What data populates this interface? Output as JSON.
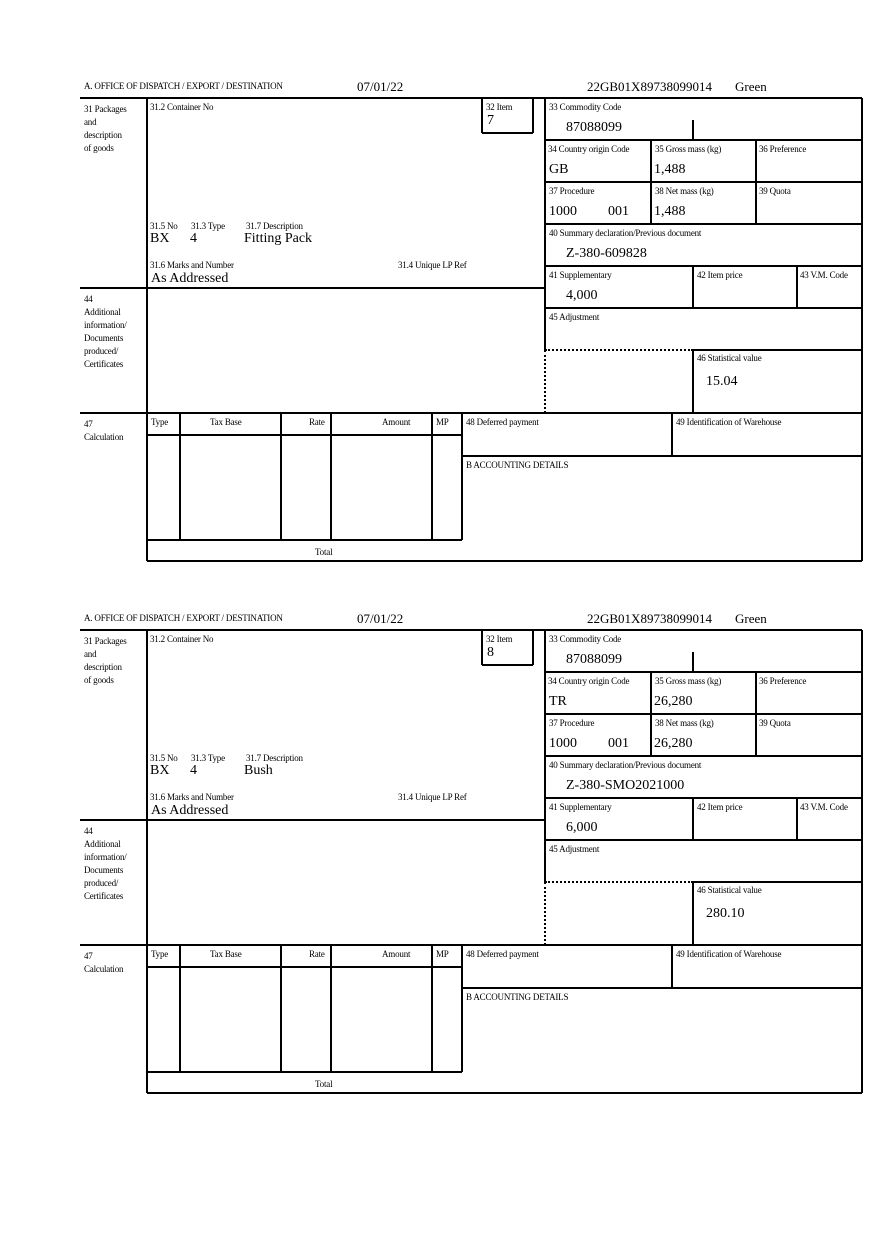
{
  "labels": {
    "office": "A.  OFFICE OF DISPATCH / EXPORT / DESTINATION",
    "box31": "31 Packages\nand\ndescription\nof goods",
    "box31_2": "31.2 Container No",
    "box32": "32 Item",
    "box33": "33 Commodity Code",
    "box34": "34 Country origin Code",
    "box35": "35 Gross mass (kg)",
    "box36": "36 Preference",
    "box37": "37 Procedure",
    "box38": "38 Net mass (kg)",
    "box39": "39 Quota",
    "box40": "40 Summary declaration/Previous document",
    "box41": "41 Supplementary",
    "box42": "42 Item price",
    "box43": "43 V.M. Code",
    "box45": "45 Adjustment",
    "box46": "46 Statistical value",
    "box31_5": "31.5 No",
    "box31_3": "31.3 Type",
    "box31_7": "31.7 Description",
    "box31_6": "31.6 Marks and Number",
    "box31_4": "31.4 Unique LP Ref",
    "box44": "44\nAdditional\ninformation/\nDocuments\nproduced/\nCertificates",
    "box47": "47\nCalculation",
    "col_type": "Type",
    "col_taxbase": "Tax Base",
    "col_rate": "Rate",
    "col_amount": "Amount",
    "col_mp": "MP",
    "total": "Total",
    "box48": "48 Deferred payment",
    "box49": "49 Identification of Warehouse",
    "accounting": "B ACCOUNTING DETAILS"
  },
  "items": [
    {
      "date": "07/01/22",
      "reference": "22GB01X89738099014",
      "route": "Green",
      "item_no": "7",
      "commodity_code": "87088099",
      "country_origin": "GB",
      "gross_mass": "1,488",
      "procedure": "1000",
      "procedure_additional": "001",
      "net_mass": "1,488",
      "previous_document": "Z-380-609828",
      "supplementary": "4,000",
      "statistical_value": "15.04",
      "package_kind": "BX",
      "package_count": "4",
      "description": "Fitting Pack",
      "marks": "As Addressed"
    },
    {
      "date": "07/01/22",
      "reference": "22GB01X89738099014",
      "route": "Green",
      "item_no": "8",
      "commodity_code": "87088099",
      "country_origin": "TR",
      "gross_mass": "26,280",
      "procedure": "1000",
      "procedure_additional": "001",
      "net_mass": "26,280",
      "previous_document": "Z-380-SMO2021000",
      "supplementary": "6,000",
      "statistical_value": "280.10",
      "package_kind": "BX",
      "package_count": "4",
      "description": "Bush",
      "marks": "As Addressed"
    }
  ]
}
